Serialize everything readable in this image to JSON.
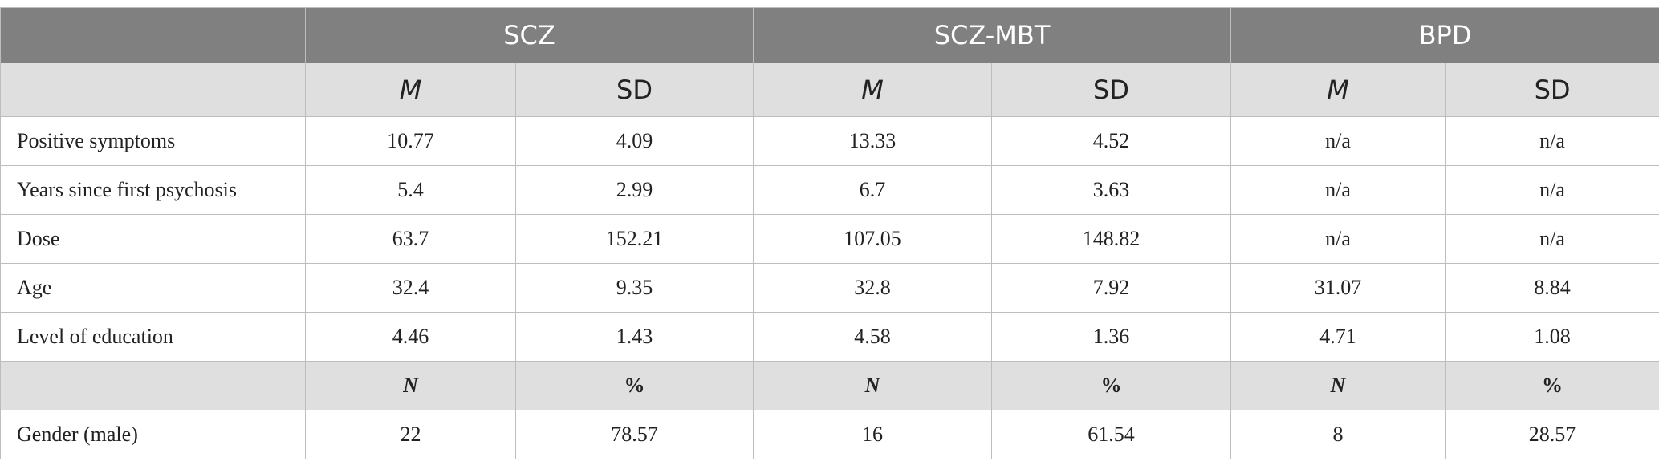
{
  "table": {
    "groups": [
      "SCZ",
      "SCZ-MBT",
      "BPD"
    ],
    "measure_header": [
      "M",
      "SD",
      "M",
      "SD",
      "M",
      "SD"
    ],
    "rows": [
      {
        "label": "Positive symptoms",
        "cells": [
          "10.77",
          "4.09",
          "13.33",
          "4.52",
          "n/a",
          "n/a"
        ]
      },
      {
        "label": "Years since first psychosis",
        "cells": [
          "5.4",
          "2.99",
          "6.7",
          "3.63",
          "n/a",
          "n/a"
        ]
      },
      {
        "label": "Dose",
        "cells": [
          "63.7",
          "152.21",
          "107.05",
          "148.82",
          "n/a",
          "n/a"
        ]
      },
      {
        "label": "Age",
        "cells": [
          "32.4",
          "9.35",
          "32.8",
          "7.92",
          "31.07",
          "8.84"
        ]
      },
      {
        "label": "Level of education",
        "cells": [
          "4.46",
          "1.43",
          "4.58",
          "1.36",
          "4.71",
          "1.08"
        ]
      }
    ],
    "count_header": [
      "N",
      "%",
      "N",
      "%",
      "N",
      "%"
    ],
    "count_rows": [
      {
        "label": "Gender (male)",
        "cells": [
          "22",
          "78.57",
          "16",
          "61.54",
          "8",
          "28.57"
        ]
      }
    ]
  }
}
